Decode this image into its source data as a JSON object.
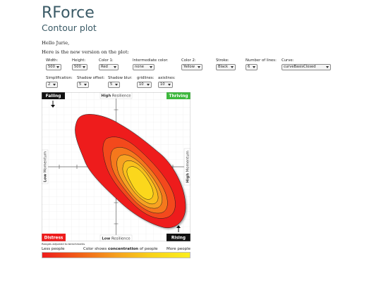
{
  "header": {
    "title": "RForce",
    "subtitle": "Contour plot"
  },
  "greeting": {
    "hello": "Hello Jurie,",
    "intro": "Here is the new version on the plot:"
  },
  "controls_row1": [
    {
      "name": "width",
      "label": "Width:",
      "value": "500"
    },
    {
      "name": "height",
      "label": "Height:",
      "value": "500"
    },
    {
      "name": "color1",
      "label": "Color 1:",
      "value": "Red"
    },
    {
      "name": "intermediate-color",
      "label": "Intermediate color:",
      "value": "none"
    },
    {
      "name": "color2",
      "label": "Color 2:",
      "value": "Yellow"
    },
    {
      "name": "stroke",
      "label": "Stroke:",
      "value": "Black"
    },
    {
      "name": "number-of-lines",
      "label": "Number of lines:",
      "value": "6"
    },
    {
      "name": "curve",
      "label": "Curve:",
      "value": "curveBasisClosed"
    }
  ],
  "controls_row2": [
    {
      "name": "simplification",
      "label": "Simplification:",
      "value": "2"
    },
    {
      "name": "shadow-offset",
      "label": "Shadow offset:",
      "value": "5"
    },
    {
      "name": "shadow-blur",
      "label": "Shadow blur:",
      "value": "5"
    },
    {
      "name": "gridlines",
      "label": "gridlines:",
      "value": "10"
    },
    {
      "name": "axislines",
      "label": "axislines:",
      "value": "10"
    }
  ],
  "plot": {
    "falling": "Falling",
    "thriving": "Thriving",
    "distress": "Distress",
    "rising": "Rising",
    "high_resilience_bold": "High",
    "high_resilience_rest": " Resilience",
    "low_resilience_bold": "Low",
    "low_resilience_rest": " Resilience",
    "low_momentum_bold": "Low",
    "low_momentum_rest": " Momentum",
    "high_momentum_bold": "High",
    "high_momentum_rest": " Momentum",
    "colors": {
      "black": "#111111",
      "green": "#3cb83c",
      "red": "#ee1c1c",
      "yellow": "#fbd71a"
    }
  },
  "footer": {
    "note": "Ranges adjusted to benchmarks",
    "less": "Less people",
    "shows_pre": "Color shows ",
    "shows_bold": "concentration",
    "shows_post": " of people",
    "more": "More people"
  }
}
